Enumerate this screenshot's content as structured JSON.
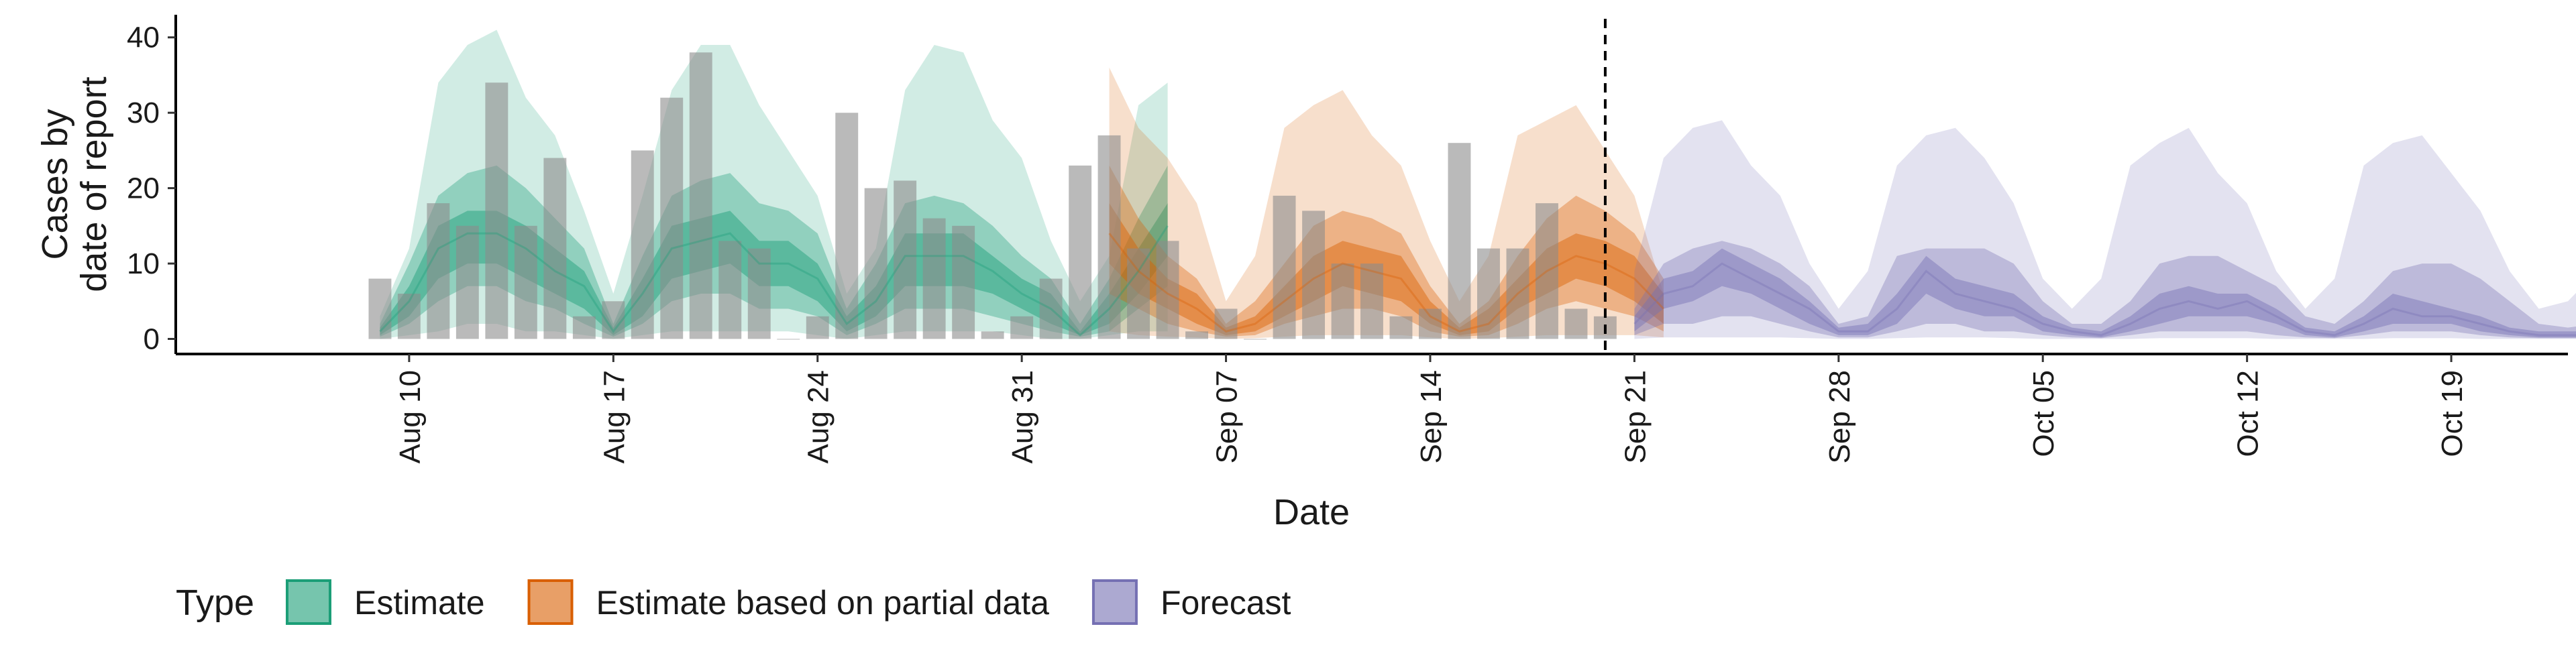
{
  "chart_data": {
    "type": "area",
    "xlabel": "Date",
    "ylabel_lines": [
      "Cases by",
      "date of report"
    ],
    "yticks": [
      0,
      10,
      20,
      30,
      40
    ],
    "ylim": [
      -2,
      43
    ],
    "xlim": [
      "2021-08-02",
      "2021-10-23"
    ],
    "xticks": [
      {
        "date": "2021-08-10",
        "label": "Aug 10"
      },
      {
        "date": "2021-08-17",
        "label": "Aug 17"
      },
      {
        "date": "2021-08-24",
        "label": "Aug 24"
      },
      {
        "date": "2021-08-31",
        "label": "Aug 31"
      },
      {
        "date": "2021-09-07",
        "label": "Sep 07"
      },
      {
        "date": "2021-09-14",
        "label": "Sep 14"
      },
      {
        "date": "2021-09-21",
        "label": "Sep 21"
      },
      {
        "date": "2021-09-28",
        "label": "Sep 28"
      },
      {
        "date": "2021-10-05",
        "label": "Oct 05"
      },
      {
        "date": "2021-10-12",
        "label": "Oct 12"
      },
      {
        "date": "2021-10-19",
        "label": "Oct 19"
      }
    ],
    "forecast_start": "2021-09-20",
    "legend": {
      "title": "Type",
      "position": "bottom-left"
    },
    "reported_cases": {
      "start": "2021-08-09",
      "values": [
        8,
        6,
        18,
        15,
        34,
        15,
        24,
        3,
        5,
        25,
        32,
        38,
        13,
        12,
        0,
        3,
        30,
        20,
        21,
        16,
        15,
        1,
        3,
        8,
        23,
        27,
        12,
        13,
        1,
        4,
        0,
        19,
        17,
        10,
        10,
        3,
        4,
        26,
        12,
        12,
        18,
        4,
        3
      ]
    },
    "series": [
      {
        "name": "Estimate",
        "color": "#1b9e77",
        "start": "2021-08-09",
        "median": [
          1,
          5,
          12,
          14,
          14,
          12,
          9,
          7,
          1,
          6,
          12,
          13,
          14,
          10,
          10,
          8,
          2,
          5,
          11,
          11,
          11,
          9,
          6,
          4,
          0.5,
          4,
          9,
          15
        ],
        "inner_lower": [
          0.5,
          3,
          8,
          10,
          10,
          8,
          6,
          4,
          0.5,
          3,
          8,
          9,
          10,
          7,
          7,
          5,
          1,
          3,
          7,
          7,
          7,
          6,
          4,
          2,
          0.5,
          2,
          6,
          11
        ],
        "inner_upper": [
          1.5,
          7,
          15,
          17,
          17,
          15,
          12,
          9,
          1.5,
          8,
          15,
          16,
          17,
          13,
          13,
          10,
          3,
          7,
          14,
          14,
          14,
          11,
          8,
          6,
          1,
          6,
          12,
          18
        ],
        "mid_lower": [
          0.3,
          2,
          5,
          7,
          7,
          5,
          4,
          2,
          0.3,
          2,
          5,
          6,
          6,
          4,
          4,
          3,
          0.5,
          2,
          4,
          4,
          4,
          3,
          2,
          1,
          0.3,
          1,
          4,
          7
        ],
        "mid_upper": [
          2,
          10,
          19,
          22,
          23,
          20,
          16,
          12,
          2,
          11,
          19,
          21,
          22,
          18,
          17,
          14,
          4,
          10,
          18,
          19,
          18,
          15,
          11,
          8,
          2,
          8,
          16,
          23
        ],
        "outer_lower": [
          0,
          0.5,
          1,
          2,
          2,
          1,
          1,
          0.5,
          0,
          0.5,
          1,
          1,
          1,
          1,
          1,
          0.5,
          0,
          0.5,
          1,
          1,
          1,
          1,
          0.5,
          0,
          0,
          0.5,
          1,
          1
        ],
        "outer_upper": [
          3,
          12,
          34,
          39,
          41,
          32,
          27,
          17,
          6,
          19,
          33,
          39,
          39,
          31,
          25,
          19,
          6,
          12,
          33,
          39,
          38,
          29,
          24,
          13,
          5,
          11,
          31,
          34
        ]
      },
      {
        "name": "Estimate based on partial data",
        "color": "#d95f02",
        "start": "2021-09-03",
        "median": [
          14,
          9,
          6,
          4,
          1,
          2,
          5,
          8,
          10,
          9,
          8,
          3,
          1,
          2,
          6,
          9,
          11,
          10,
          8,
          4
        ],
        "inner_lower": [
          10,
          6,
          4,
          2,
          0.5,
          1,
          3,
          5,
          7,
          6,
          5,
          2,
          0.5,
          1,
          4,
          6,
          8,
          7,
          5,
          2
        ],
        "inner_upper": [
          18,
          12,
          8,
          6,
          1.5,
          3,
          7,
          11,
          13,
          12,
          11,
          5,
          1.5,
          4,
          8,
          12,
          14,
          13,
          11,
          6
        ],
        "mid_lower": [
          6,
          4,
          2,
          1,
          0.3,
          0.5,
          2,
          3,
          4,
          4,
          3,
          1,
          0.3,
          0.5,
          2,
          4,
          5,
          4,
          3,
          1
        ],
        "mid_upper": [
          23,
          16,
          11,
          8,
          2,
          5,
          10,
          15,
          17,
          16,
          14,
          7,
          2,
          5,
          11,
          16,
          19,
          17,
          14,
          8
        ],
        "outer_lower": [
          1,
          0.5,
          0.3,
          0.2,
          0,
          0.1,
          0.3,
          0.5,
          0.5,
          0.5,
          0.5,
          0.2,
          0,
          0.1,
          0.3,
          0.5,
          0.5,
          0.5,
          0.5,
          0.2
        ],
        "outer_upper": [
          36,
          28,
          24,
          18,
          5,
          11,
          28,
          31,
          33,
          27,
          23,
          13,
          5,
          11,
          27,
          29,
          31,
          25,
          19,
          6
        ]
      },
      {
        "name": "Forecast",
        "color": "#7570b3",
        "start": "2021-09-21",
        "median": [
          2,
          6,
          7,
          10,
          8,
          6,
          4,
          1,
          1,
          4,
          9,
          6,
          5,
          4,
          2,
          1,
          0.5,
          2,
          4,
          5,
          4,
          5,
          3,
          1,
          0.5,
          2,
          4,
          3,
          3,
          2,
          1,
          0.5,
          0.5,
          0.5,
          2
        ],
        "inner_lower": [
          1,
          4,
          5,
          7,
          6,
          4,
          2,
          0.5,
          0.5,
          2,
          6,
          4,
          3,
          3,
          1,
          0.5,
          0.2,
          1,
          2,
          3,
          3,
          3,
          2,
          0.5,
          0.2,
          1,
          2,
          2,
          2,
          1,
          0.5,
          0.2,
          0.2,
          0.2,
          1
        ],
        "inner_upper": [
          3,
          8,
          9,
          12,
          10,
          8,
          5,
          1.5,
          2,
          6,
          11,
          8,
          7,
          6,
          3,
          1.5,
          1,
          3,
          6,
          7,
          6,
          6,
          4,
          1.5,
          1,
          3,
          6,
          5,
          4,
          3,
          1.5,
          1,
          1,
          1,
          3
        ],
        "mid_lower": [
          0.5,
          2,
          2,
          3,
          3,
          2,
          1,
          0.2,
          0.2,
          1,
          2,
          2,
          1,
          1,
          0.5,
          0.2,
          0.1,
          0.5,
          1,
          1,
          1,
          1,
          0.5,
          0.2,
          0.1,
          0.5,
          1,
          1,
          1,
          0.5,
          0.2,
          0.1,
          0.1,
          0.1,
          0.5
        ],
        "mid_upper": [
          4,
          10,
          12,
          13,
          12,
          10,
          7,
          2,
          3,
          11,
          12,
          12,
          12,
          10,
          5,
          2,
          2,
          5,
          10,
          11,
          11,
          9,
          7,
          3,
          2,
          5,
          9,
          10,
          10,
          8,
          5,
          2,
          1.5,
          2,
          7
        ],
        "outer_lower": [
          0,
          0.2,
          0.2,
          0.2,
          0.2,
          0.2,
          0.1,
          0,
          0,
          0.1,
          0.2,
          0.2,
          0.2,
          0.1,
          0,
          0,
          0,
          0,
          0.1,
          0.1,
          0.1,
          0.1,
          0,
          0,
          0,
          0,
          0.1,
          0.1,
          0.1,
          0,
          0,
          0,
          0,
          0,
          0
        ],
        "outer_upper": [
          9,
          24,
          28,
          29,
          23,
          19,
          10,
          4,
          9,
          23,
          27,
          28,
          24,
          18,
          8,
          4,
          8,
          23,
          26,
          28,
          22,
          18,
          9,
          4,
          8,
          23,
          26,
          27,
          22,
          17,
          9,
          4,
          5,
          9,
          23
        ]
      }
    ]
  }
}
